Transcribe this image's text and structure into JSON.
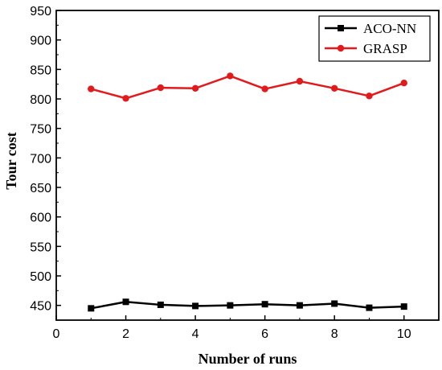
{
  "chart_data": {
    "type": "line",
    "x": [
      1,
      2,
      3,
      4,
      5,
      6,
      7,
      8,
      9,
      10
    ],
    "series": [
      {
        "name": "ACO-NN",
        "color": "#000000",
        "marker": "square",
        "values": [
          445,
          456,
          451,
          449,
          450,
          452,
          450,
          453,
          446,
          448
        ]
      },
      {
        "name": "GRASP",
        "color": "#e31a1c",
        "marker": "circle",
        "values": [
          817,
          801,
          819,
          818,
          839,
          817,
          830,
          818,
          805,
          827
        ]
      }
    ],
    "xlabel": "Number of runs",
    "ylabel": "Tour cost",
    "xlim": [
      0,
      11
    ],
    "ylim": [
      425,
      950
    ],
    "xticks": [
      0,
      2,
      4,
      6,
      8,
      10
    ],
    "yticks": [
      450,
      500,
      550,
      600,
      650,
      700,
      750,
      800,
      850,
      900,
      950
    ],
    "grid": false,
    "legend_position": "top-right"
  }
}
